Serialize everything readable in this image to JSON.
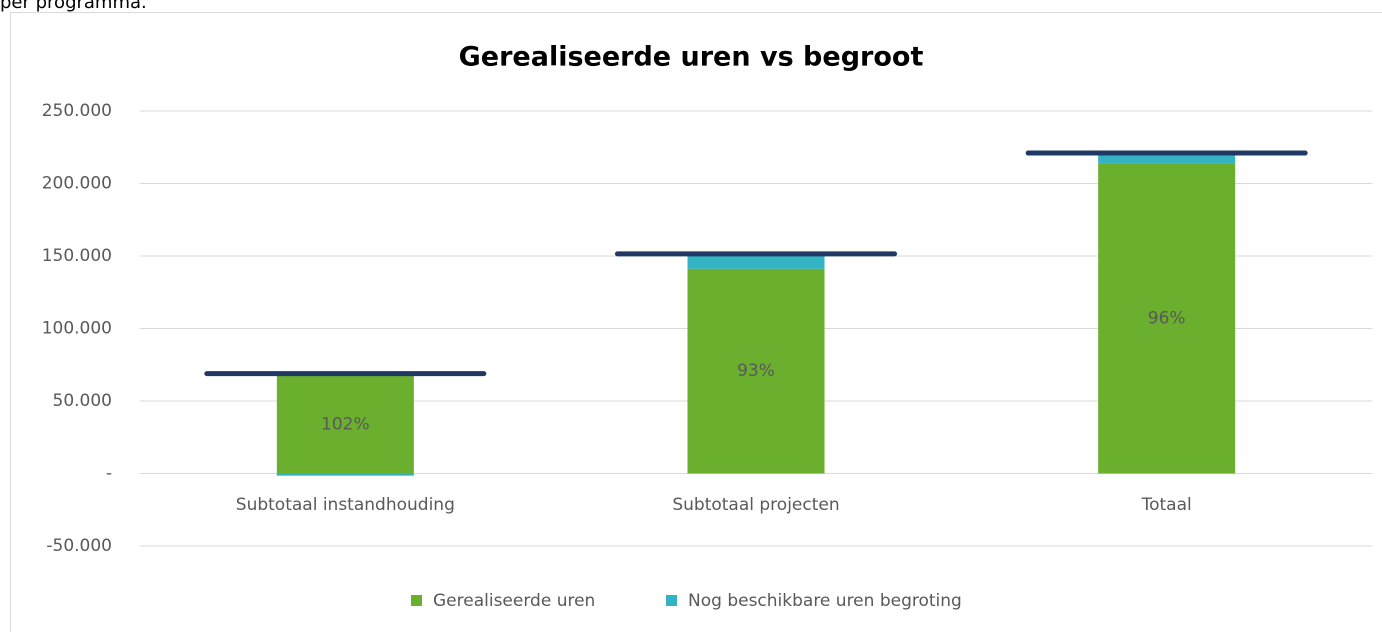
{
  "page_caption": "per programma.",
  "chart_data": {
    "type": "stacked_bar",
    "title": "Gerealiseerde uren vs begroot",
    "categories": [
      "Subtotaal instandhouding",
      "Subtotaal projecten",
      "Totaal"
    ],
    "series": [
      {
        "name": "Gerealiseerde uren",
        "color": "#6aaf2e",
        "values": [
          67500,
          141200,
          213500
        ]
      },
      {
        "name": "Nog beschikbare uren begroting",
        "color": "#33b3c3",
        "values": [
          -1500,
          8800,
          6200
        ]
      }
    ],
    "budget": {
      "color": "#203864",
      "values": [
        68900,
        151500,
        221000
      ]
    },
    "annotations": [
      "102%",
      "93%",
      "96%"
    ],
    "ylim": [
      -50000,
      250000
    ],
    "yticks": [
      {
        "value": -50000,
        "label": "-50.000"
      },
      {
        "value": 0,
        "label": "-"
      },
      {
        "value": 50000,
        "label": "50.000"
      },
      {
        "value": 100000,
        "label": "100.000"
      },
      {
        "value": 150000,
        "label": "150.000"
      },
      {
        "value": 200000,
        "label": "200.000"
      },
      {
        "value": 250000,
        "label": "250.000"
      }
    ],
    "grid": true,
    "legend": "bottom"
  }
}
